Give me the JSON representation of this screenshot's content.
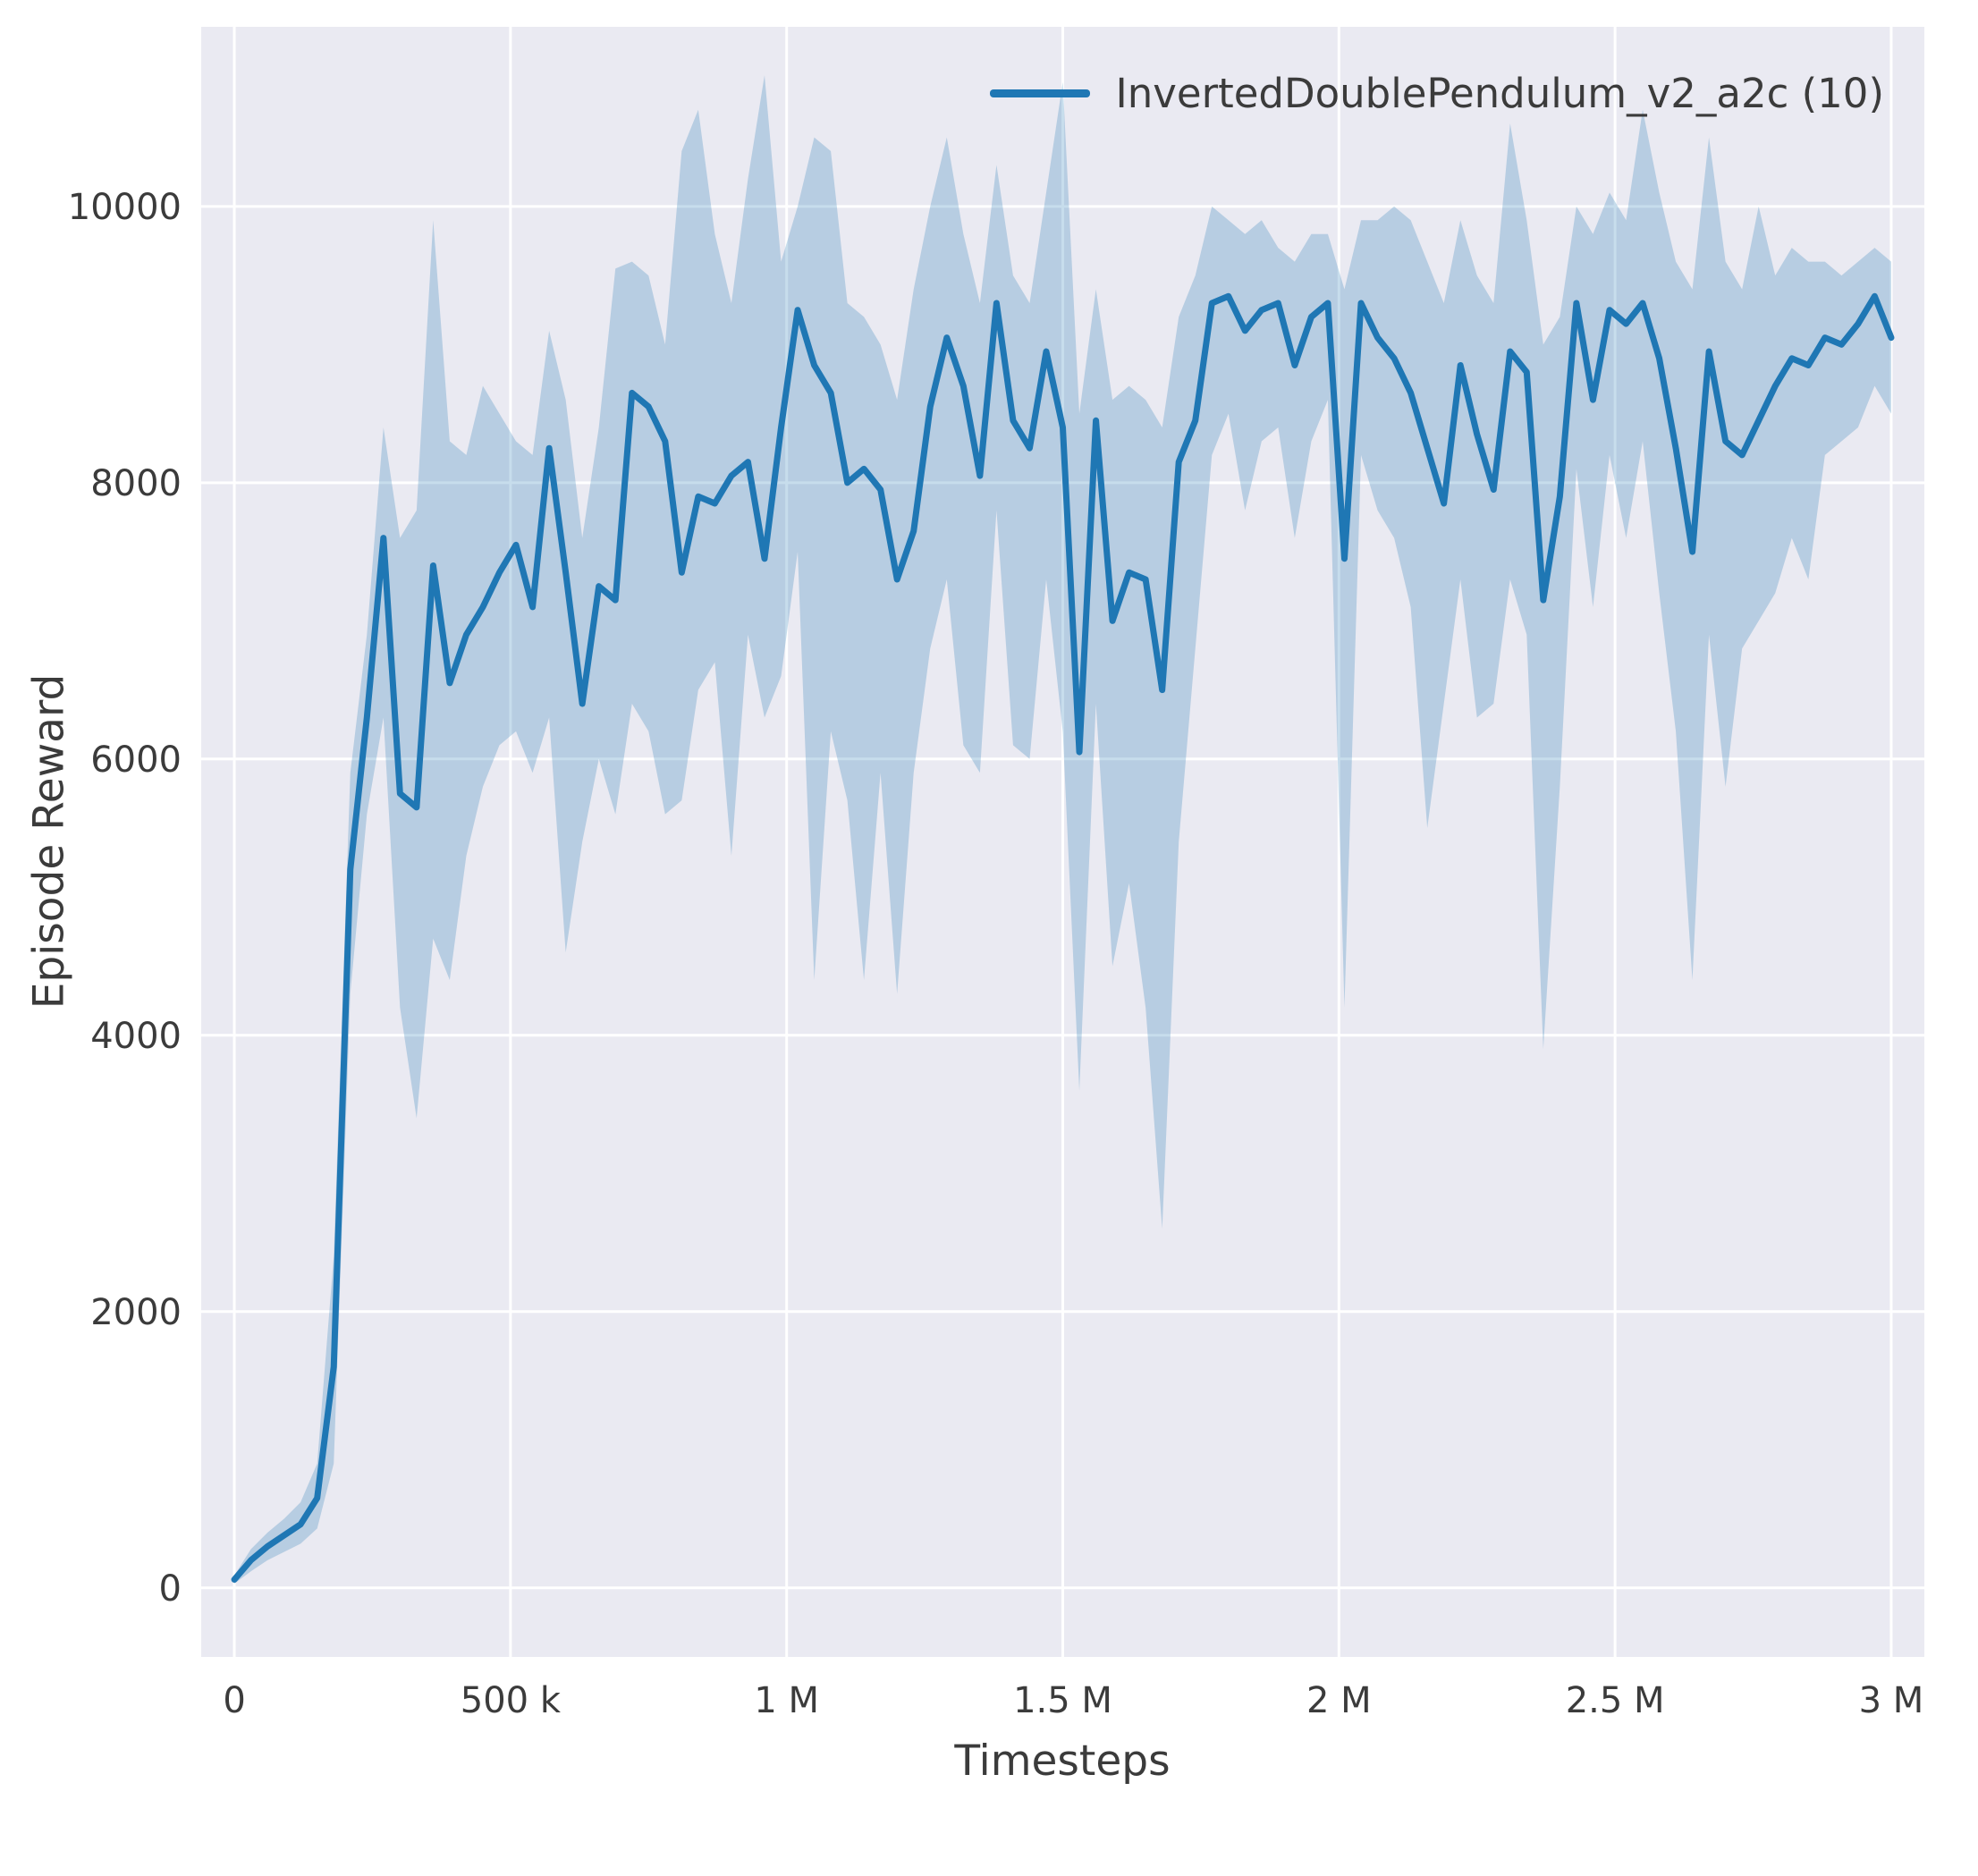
{
  "figure": {
    "background": "#ffffff",
    "axes_background": "#eaeaf2",
    "grid_color": "#ffffff",
    "text_color": "#3b3b3b"
  },
  "legend": {
    "label": "InvertedDoublePendulum_v2_a2c (10)",
    "line_color": "#1f77b4"
  },
  "chart_data": {
    "type": "line",
    "title": "",
    "xlabel": "Timesteps",
    "ylabel": "Episode Reward",
    "grid": true,
    "legend_position": "upper right",
    "xlim": [
      -60000,
      3060000
    ],
    "ylim": [
      -500,
      11300
    ],
    "xticks": {
      "values": [
        0,
        500000,
        1000000,
        1500000,
        2000000,
        2500000,
        3000000
      ],
      "labels": [
        "0",
        "500 k",
        "1 M",
        "1.5 M",
        "2 M",
        "2.5 M",
        "3 M"
      ]
    },
    "yticks": {
      "values": [
        0,
        2000,
        4000,
        6000,
        8000,
        10000
      ],
      "labels": [
        "0",
        "2000",
        "4000",
        "6000",
        "8000",
        "10000"
      ]
    },
    "series": [
      {
        "name": "InvertedDoublePendulum_v2_a2c (10)",
        "color": "#1f77b4",
        "band_opacity": 0.25,
        "x": [
          0,
          30000,
          60000,
          90000,
          120000,
          150000,
          180000,
          210000,
          240000,
          270000,
          300000,
          330000,
          360000,
          390000,
          420000,
          450000,
          480000,
          510000,
          540000,
          570000,
          600000,
          630000,
          660000,
          690000,
          720000,
          750000,
          780000,
          810000,
          840000,
          870000,
          900000,
          930000,
          960000,
          990000,
          1020000,
          1050000,
          1080000,
          1110000,
          1140000,
          1170000,
          1200000,
          1230000,
          1260000,
          1290000,
          1320000,
          1350000,
          1380000,
          1410000,
          1440000,
          1470000,
          1500000,
          1530000,
          1560000,
          1590000,
          1620000,
          1650000,
          1680000,
          1710000,
          1740000,
          1770000,
          1800000,
          1830000,
          1860000,
          1890000,
          1920000,
          1950000,
          1980000,
          2010000,
          2040000,
          2070000,
          2100000,
          2130000,
          2160000,
          2190000,
          2220000,
          2250000,
          2280000,
          2310000,
          2340000,
          2370000,
          2400000,
          2430000,
          2460000,
          2490000,
          2520000,
          2550000,
          2580000,
          2610000,
          2640000,
          2670000,
          2700000,
          2730000,
          2760000,
          2790000,
          2820000,
          2850000,
          2880000,
          2910000,
          2940000,
          2970000,
          3000000
        ],
        "mean": [
          60,
          200,
          300,
          380,
          460,
          650,
          1600,
          5200,
          6300,
          7600,
          5750,
          5650,
          7400,
          6550,
          6900,
          7100,
          7350,
          7550,
          7100,
          8250,
          7350,
          6400,
          7250,
          7150,
          8650,
          8550,
          8300,
          7350,
          7900,
          7850,
          8050,
          8150,
          7450,
          8400,
          9250,
          8850,
          8650,
          8000,
          8100,
          7950,
          7300,
          7650,
          8550,
          9050,
          8700,
          8050,
          9300,
          8450,
          8250,
          8950,
          8400,
          6050,
          8450,
          7000,
          7350,
          7300,
          6500,
          8150,
          8450,
          9300,
          9350,
          9100,
          9250,
          9300,
          8850,
          9200,
          9300,
          7450,
          9300,
          9050,
          8900,
          8650,
          8250,
          7850,
          8850,
          8350,
          7950,
          8950,
          8800,
          7150,
          7900,
          9300,
          8600,
          9250,
          9150,
          9300,
          8900,
          8250,
          7500,
          8950,
          8300,
          8200,
          8450,
          8700,
          8900,
          8850,
          9050,
          9000,
          9150,
          9350,
          9050
        ],
        "band_low": [
          30,
          120,
          200,
          260,
          320,
          430,
          900,
          4300,
          5600,
          6300,
          4200,
          3400,
          4700,
          4400,
          5300,
          5800,
          6100,
          6200,
          5900,
          6300,
          4600,
          5400,
          6000,
          5600,
          6400,
          6200,
          5600,
          5700,
          6500,
          6700,
          5300,
          6900,
          6300,
          6600,
          7500,
          4400,
          6200,
          5700,
          4400,
          5900,
          4300,
          5900,
          6800,
          7300,
          6100,
          5900,
          7800,
          6100,
          6000,
          7300,
          6200,
          3600,
          6400,
          4500,
          5100,
          4200,
          2600,
          5400,
          6800,
          8200,
          8500,
          7800,
          8300,
          8400,
          7600,
          8300,
          8600,
          4200,
          8200,
          7800,
          7600,
          7100,
          5500,
          6400,
          7300,
          6300,
          6400,
          7300,
          6900,
          3900,
          5800,
          8100,
          7100,
          8200,
          7600,
          8300,
          7200,
          6200,
          4400,
          6900,
          5800,
          6800,
          7000,
          7200,
          7600,
          7300,
          8200,
          8300,
          8400,
          8700,
          8500
        ],
        "band_high": [
          90,
          280,
          400,
          500,
          620,
          900,
          2400,
          5900,
          6900,
          8400,
          7600,
          7800,
          9900,
          8300,
          8200,
          8700,
          8500,
          8300,
          8200,
          9100,
          8600,
          7600,
          8400,
          9550,
          9600,
          9500,
          9000,
          10400,
          10700,
          9800,
          9300,
          10200,
          10950,
          9600,
          10000,
          10500,
          10400,
          9300,
          9200,
          9000,
          8600,
          9400,
          10000,
          10500,
          9800,
          9300,
          10300,
          9500,
          9300,
          10100,
          10900,
          8500,
          9400,
          8600,
          8700,
          8600,
          8400,
          9200,
          9500,
          10000,
          9900,
          9800,
          9900,
          9700,
          9600,
          9800,
          9800,
          9400,
          9900,
          9900,
          10000,
          9900,
          9600,
          9300,
          9900,
          9500,
          9300,
          10600,
          9900,
          9000,
          9200,
          10000,
          9800,
          10100,
          9900,
          10700,
          10100,
          9600,
          9400,
          10500,
          9600,
          9400,
          10000,
          9500,
          9700,
          9600,
          9600,
          9500,
          9600,
          9700,
          9600
        ]
      }
    ]
  }
}
